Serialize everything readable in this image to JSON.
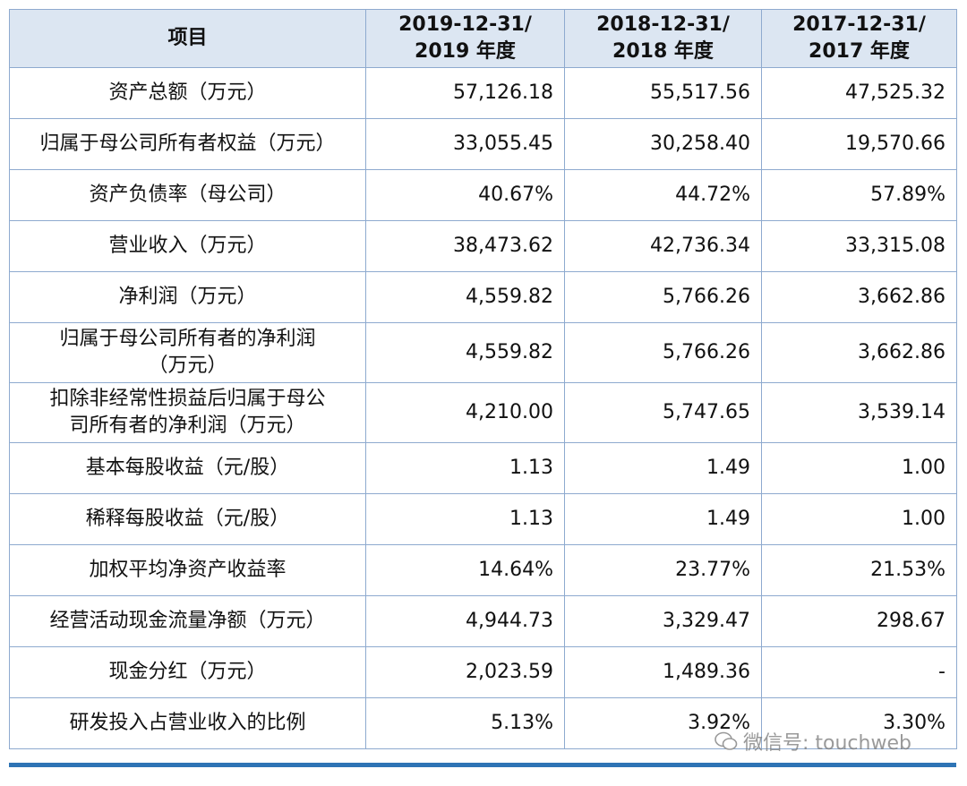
{
  "table": {
    "header": [
      "项目",
      "2019-12-31/\n2019 年度",
      "2018-12-31/\n2018 年度",
      "2017-12-31/\n2017 年度"
    ],
    "rows": [
      [
        "资产总额（万元）",
        "57,126.18",
        "55,517.56",
        "47,525.32"
      ],
      [
        "归属于母公司所有者权益（万元）",
        "33,055.45",
        "30,258.40",
        "19,570.66"
      ],
      [
        "资产负债率（母公司）",
        "40.67%",
        "44.72%",
        "57.89%"
      ],
      [
        "营业收入（万元）",
        "38,473.62",
        "42,736.34",
        "33,315.08"
      ],
      [
        "净利润（万元）",
        "4,559.82",
        "5,766.26",
        "3,662.86"
      ],
      [
        "归属于母公司所有者的净利润\n（万元）",
        "4,559.82",
        "5,766.26",
        "3,662.86"
      ],
      [
        "扣除非经常性损益后归属于母公\n司所有者的净利润（万元）",
        "4,210.00",
        "5,747.65",
        "3,539.14"
      ],
      [
        "基本每股收益（元/股）",
        "1.13",
        "1.49",
        "1.00"
      ],
      [
        "稀释每股收益（元/股）",
        "1.13",
        "1.49",
        "1.00"
      ],
      [
        "加权平均净资产收益率",
        "14.64%",
        "23.77%",
        "21.53%"
      ],
      [
        "经营活动现金流量净额（万元）",
        "4,944.73",
        "3,329.47",
        "298.67"
      ],
      [
        "现金分红（万元）",
        "2,023.59",
        "1,489.36",
        "-"
      ],
      [
        "研发投入占营业收入的比例",
        "5.13%",
        "3.92%",
        "3.30%"
      ]
    ]
  },
  "watermark": "微信号: touchweb"
}
